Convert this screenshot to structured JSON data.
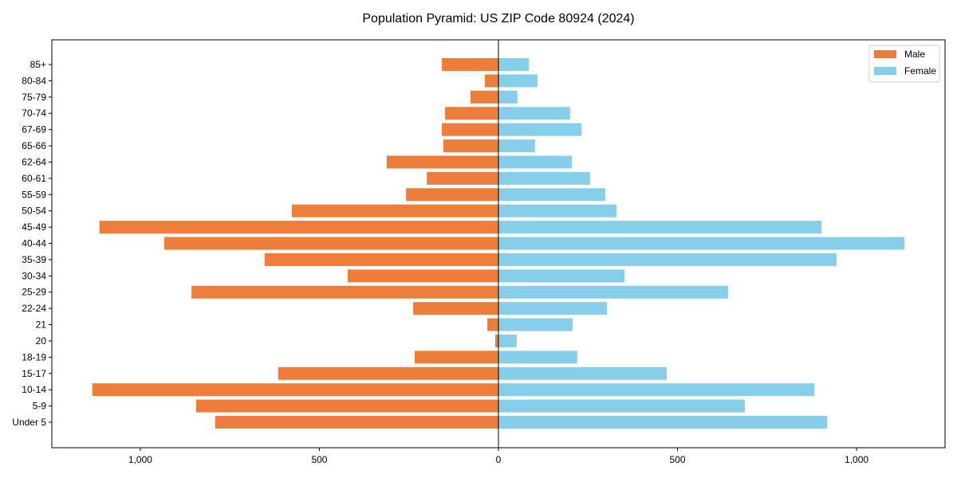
{
  "chart_data": {
    "type": "bar",
    "orientation": "horizontal",
    "title": "Population Pyramid: US ZIP Code 80924 (2024)",
    "xlabel": "",
    "ylabel": "",
    "xlim": [
      -1247,
      1247
    ],
    "xticks": [
      -1000,
      -500,
      0,
      500,
      1000
    ],
    "xtick_labels": [
      "1,000",
      "500",
      "0",
      "500",
      "1,000"
    ],
    "categories": [
      "85+",
      "80-84",
      "75-79",
      "70-74",
      "67-69",
      "65-66",
      "62-64",
      "60-61",
      "55-59",
      "50-54",
      "45-49",
      "40-44",
      "35-39",
      "30-34",
      "25-29",
      "22-24",
      "21",
      "20",
      "18-19",
      "15-17",
      "10-14",
      "5-9",
      "Under 5"
    ],
    "series": [
      {
        "name": "Male",
        "color": "#ED7D3A",
        "values": [
          158,
          38,
          78,
          149,
          158,
          154,
          312,
          200,
          258,
          577,
          1114,
          933,
          653,
          421,
          857,
          238,
          31,
          9,
          234,
          615,
          1134,
          844,
          791
        ]
      },
      {
        "name": "Female",
        "color": "#87CEEB",
        "values": [
          85,
          109,
          53,
          200,
          232,
          102,
          205,
          256,
          298,
          330,
          902,
          1134,
          944,
          352,
          641,
          303,
          207,
          51,
          220,
          470,
          882,
          688,
          918
        ]
      }
    ],
    "legend": "top-right",
    "grid": false
  }
}
